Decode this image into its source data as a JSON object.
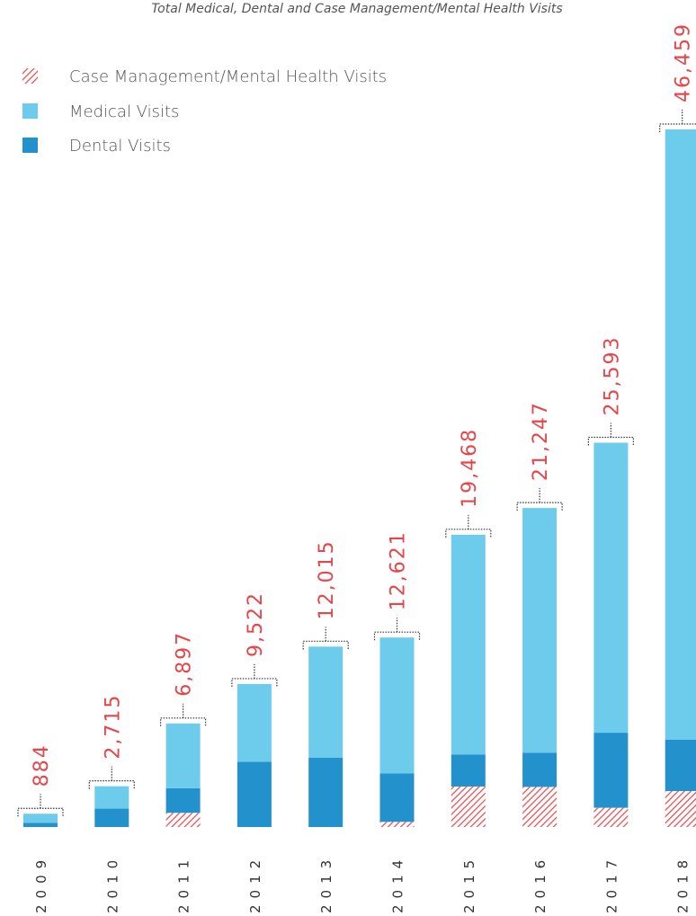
{
  "chart_data": {
    "type": "stacked_bar",
    "title": "Total Medical, Dental and Case Management/Mental Health Visits",
    "categories": [
      "2009",
      "2010",
      "2011",
      "2012",
      "2013",
      "2014",
      "2015",
      "2016",
      "2017",
      "2018"
    ],
    "series": [
      {
        "name": "Case Management/Mental Health Visits",
        "color": "#e8454a",
        "values": [
          0,
          0,
          944,
          0,
          0,
          341,
          2696,
          2670,
          1282,
          2395
        ]
      },
      {
        "name": "Medical Visits",
        "color": "#6dcbec",
        "values": [
          600,
          1491,
          4311,
          5172,
          7403,
          9058,
          14633,
          16294,
          19312,
          40651
        ]
      },
      {
        "name": "Dental Visits",
        "color": "#2392cc",
        "values": [
          284,
          1224,
          1642,
          4350,
          4612,
          3222,
          2139,
          2283,
          4999,
          3413
        ]
      }
    ],
    "totals": [
      884,
      2715,
      6897,
      9522,
      12015,
      12621,
      19468,
      21247,
      25593,
      46459
    ],
    "total_labels": [
      "884",
      "2,715",
      "6,897",
      "9,522",
      "12,015",
      "12,621",
      "19,468",
      "21,247",
      "25,593",
      "46,459"
    ]
  }
}
